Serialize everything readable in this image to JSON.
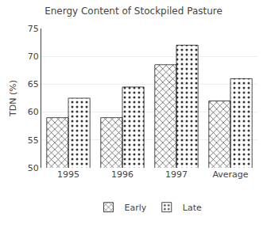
{
  "chart_data": {
    "type": "bar",
    "title": "Energy Content of Stockpiled Pasture",
    "categories": [
      "1995",
      "1996",
      "1997",
      "Average"
    ],
    "series": [
      {
        "name": "Early",
        "color": "#888888",
        "values": [
          59.0,
          59.0,
          68.5,
          62.0
        ]
      },
      {
        "name": "Late",
        "color": "#e8e8e8",
        "values": [
          62.5,
          64.5,
          72.0,
          66.0
        ]
      }
    ],
    "ylabel": "TDN (%)",
    "ylim": [
      50,
      75
    ],
    "yticks": [
      50,
      55,
      60,
      65,
      70,
      75
    ],
    "grid": true,
    "legend": "bottom"
  }
}
